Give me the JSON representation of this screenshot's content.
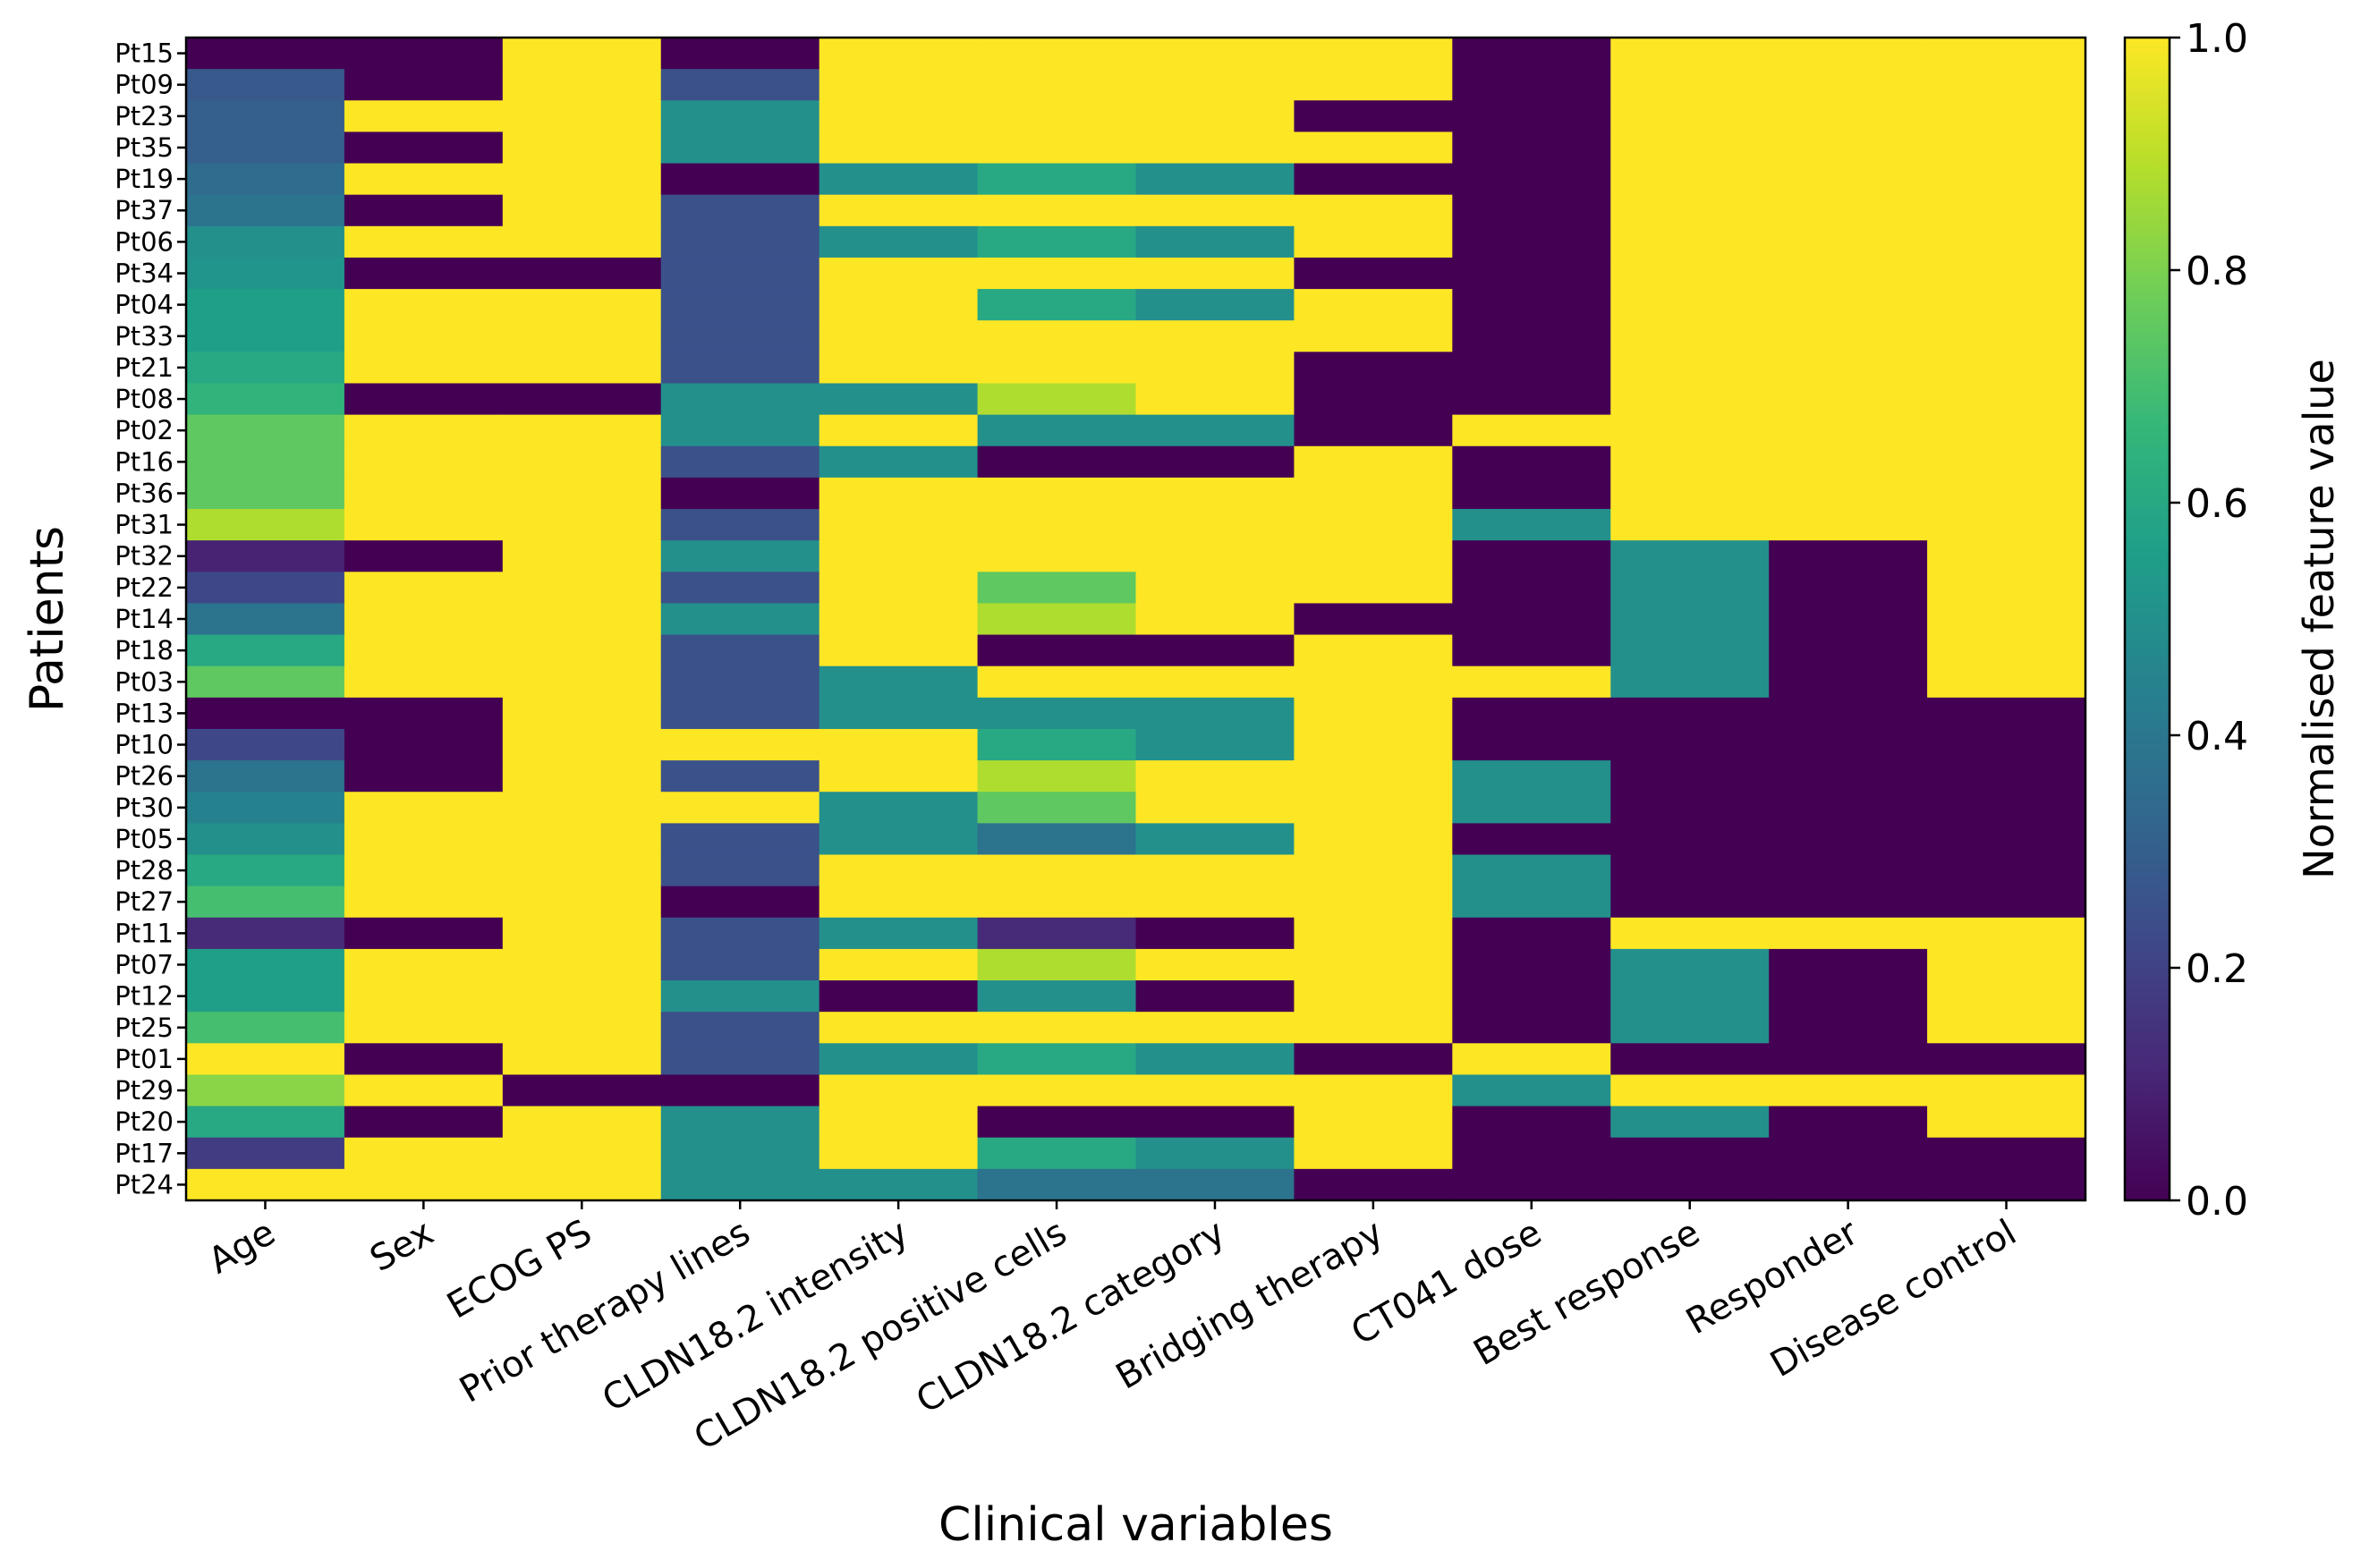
{
  "chart_data": {
    "type": "heatmap",
    "title": "",
    "xlabel": "Clinical variables",
    "ylabel": "Patients",
    "colorbar_label": "Normalised feature value",
    "colormap": "viridis",
    "colormap_stops": [
      "#440154",
      "#482777",
      "#3e4989",
      "#31688e",
      "#26828e",
      "#1f9e89",
      "#35b779",
      "#6ece58",
      "#b5de2b",
      "#fde725"
    ],
    "vmin": 0.0,
    "vmax": 1.0,
    "colorbar_ticks": [
      "0.0",
      "0.2",
      "0.4",
      "0.6",
      "0.8",
      "1.0"
    ],
    "columns": [
      "Age",
      "Sex",
      "ECOG PS",
      "Prior therapy lines",
      "CLDN18.2 intensity",
      "CLDN18.2 positive cells",
      "CLDN18.2 category",
      "Bridging therapy",
      "CT041 dose",
      "Best response",
      "Responder",
      "Disease control"
    ],
    "rows": [
      "Pt15",
      "Pt09",
      "Pt23",
      "Pt35",
      "Pt19",
      "Pt37",
      "Pt06",
      "Pt34",
      "Pt04",
      "Pt33",
      "Pt21",
      "Pt08",
      "Pt02",
      "Pt16",
      "Pt36",
      "Pt31",
      "Pt32",
      "Pt22",
      "Pt14",
      "Pt18",
      "Pt03",
      "Pt13",
      "Pt10",
      "Pt26",
      "Pt30",
      "Pt05",
      "Pt28",
      "Pt27",
      "Pt11",
      "Pt07",
      "Pt12",
      "Pt25",
      "Pt01",
      "Pt29",
      "Pt20",
      "Pt17",
      "Pt24"
    ],
    "values": [
      [
        0.0,
        0.0,
        1,
        0.0,
        1,
        1,
        1,
        1,
        0,
        1,
        1,
        1
      ],
      [
        0.28,
        0.0,
        1,
        0.25,
        1,
        1,
        1,
        1,
        0,
        1,
        1,
        1
      ],
      [
        0.3,
        1,
        1,
        0.5,
        1,
        1,
        1,
        0,
        0,
        1,
        1,
        1
      ],
      [
        0.3,
        0.0,
        1,
        0.5,
        1,
        1,
        1,
        1,
        0,
        1,
        1,
        1
      ],
      [
        0.35,
        1,
        1,
        0.0,
        0.5,
        0.6,
        0.5,
        0,
        0,
        1,
        1,
        1
      ],
      [
        0.38,
        0.0,
        1,
        0.25,
        1,
        1,
        1,
        1,
        0,
        1,
        1,
        1
      ],
      [
        0.5,
        1,
        1,
        0.25,
        0.5,
        0.6,
        0.5,
        1,
        0,
        1,
        1,
        1
      ],
      [
        0.52,
        0.0,
        0,
        0.25,
        1,
        1,
        1,
        0,
        0,
        1,
        1,
        1
      ],
      [
        0.56,
        1,
        1,
        0.25,
        1,
        0.6,
        0.5,
        1,
        0,
        1,
        1,
        1
      ],
      [
        0.56,
        1,
        1,
        0.25,
        1,
        1,
        1,
        1,
        0,
        1,
        1,
        1
      ],
      [
        0.6,
        1,
        1,
        0.25,
        1,
        1,
        1,
        0,
        0,
        1,
        1,
        1
      ],
      [
        0.65,
        0.0,
        0,
        0.5,
        0.5,
        0.88,
        1,
        0,
        0,
        1,
        1,
        1
      ],
      [
        0.75,
        1,
        1,
        0.5,
        1,
        0.5,
        0.5,
        0,
        1,
        1,
        1,
        1
      ],
      [
        0.75,
        1,
        1,
        0.25,
        0.5,
        0.0,
        0.0,
        1,
        0,
        1,
        1,
        1
      ],
      [
        0.75,
        1,
        1,
        0.0,
        1,
        1,
        1,
        1,
        0,
        1,
        1,
        1
      ],
      [
        0.88,
        1,
        1,
        0.25,
        1,
        1,
        1,
        1,
        0.5,
        1,
        1,
        1
      ],
      [
        0.1,
        0.0,
        1,
        0.5,
        1,
        1,
        1,
        1,
        0,
        0.5,
        0,
        1
      ],
      [
        0.22,
        1,
        1,
        0.25,
        1,
        0.75,
        1,
        1,
        0,
        0.5,
        0,
        1
      ],
      [
        0.38,
        1,
        1,
        0.5,
        1,
        0.88,
        1,
        0,
        0,
        0.5,
        0,
        1
      ],
      [
        0.6,
        1,
        1,
        0.25,
        1,
        0.0,
        0.0,
        1,
        0,
        0.5,
        0,
        1
      ],
      [
        0.75,
        1,
        1,
        0.25,
        0.5,
        1,
        1,
        1,
        1,
        0.5,
        0,
        1
      ],
      [
        0.0,
        0.0,
        1,
        0.25,
        0.5,
        0.5,
        0.5,
        1,
        0,
        0,
        0,
        0
      ],
      [
        0.22,
        0.0,
        1,
        1,
        1,
        0.6,
        0.5,
        1,
        0,
        0,
        0,
        0
      ],
      [
        0.38,
        0.0,
        1,
        0.25,
        1,
        0.88,
        1,
        1,
        0.5,
        0,
        0,
        0
      ],
      [
        0.44,
        1,
        1,
        1,
        0.5,
        0.75,
        1,
        1,
        0.5,
        0,
        0,
        0
      ],
      [
        0.5,
        1,
        1,
        0.25,
        0.5,
        0.38,
        0.5,
        1,
        0,
        0,
        0,
        0
      ],
      [
        0.6,
        1,
        1,
        0.25,
        1,
        1,
        1,
        1,
        0.5,
        0,
        0,
        0
      ],
      [
        0.7,
        1,
        1,
        0.0,
        1,
        1,
        1,
        1,
        0.5,
        0,
        0,
        0
      ],
      [
        0.12,
        0.0,
        1,
        0.25,
        0.5,
        0.12,
        0.0,
        1,
        0,
        1,
        1,
        1
      ],
      [
        0.56,
        1,
        1,
        0.25,
        1,
        0.88,
        1,
        1,
        0,
        0.5,
        0,
        1
      ],
      [
        0.56,
        1,
        1,
        0.5,
        0.0,
        0.5,
        0.0,
        1,
        0,
        0.5,
        0,
        1
      ],
      [
        0.7,
        1,
        1,
        0.25,
        1,
        1,
        1,
        1,
        0,
        0.5,
        0,
        1
      ],
      [
        1.0,
        0.0,
        1,
        0.25,
        0.5,
        0.6,
        0.5,
        0,
        1,
        0,
        0,
        0
      ],
      [
        0.82,
        1,
        0,
        0.0,
        1,
        1,
        1,
        1,
        0.5,
        1,
        1,
        1
      ],
      [
        0.6,
        0.0,
        1,
        0.5,
        1,
        0.0,
        0.0,
        1,
        0,
        0.5,
        0,
        1
      ],
      [
        0.18,
        1,
        1,
        0.5,
        1,
        0.6,
        0.5,
        1,
        0,
        0,
        0,
        0
      ],
      [
        1.0,
        1,
        1,
        0.5,
        0.5,
        0.38,
        0.38,
        0,
        0,
        0,
        0,
        0
      ]
    ]
  }
}
